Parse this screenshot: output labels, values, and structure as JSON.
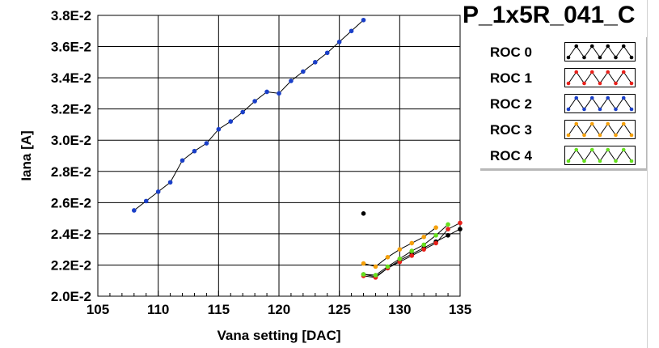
{
  "chart_data": {
    "type": "line",
    "title": "P_1x5R_041_C",
    "xlabel": "Vana setting [DAC]",
    "ylabel": "Iana [A]",
    "xlim": [
      105,
      135
    ],
    "ylim": [
      0.02,
      0.038
    ],
    "x_ticks": [
      105,
      110,
      115,
      120,
      125,
      130,
      135
    ],
    "x_tick_labels": [
      "105",
      "110",
      "115",
      "120",
      "125",
      "130",
      "135"
    ],
    "y_ticks": [
      0.02,
      0.022,
      0.024,
      0.026,
      0.028,
      0.03,
      0.032,
      0.034,
      0.036,
      0.038
    ],
    "y_tick_labels": [
      "2.0E-2",
      "2.2E-2",
      "2.4E-2",
      "2.6E-2",
      "2.8E-2",
      "3.0E-2",
      "3.2E-2",
      "3.4E-2",
      "3.6E-2",
      "3.8E-2"
    ],
    "grid": true,
    "legend_position": "top-right",
    "series": [
      {
        "name": "ROC 0",
        "color": "#000000",
        "x": [
          127,
          128,
          129,
          130,
          131,
          132,
          133,
          134,
          135,
          127
        ],
        "y": [
          0.0214,
          0.02125,
          0.0218,
          0.0223,
          0.0227,
          0.0231,
          0.0235,
          0.0239,
          0.0243,
          0.0253
        ],
        "connect": [
          true,
          true,
          true,
          true,
          true,
          true,
          true,
          true,
          true,
          false
        ]
      },
      {
        "name": "ROC 1",
        "color": "#e8201a",
        "x": [
          127,
          128,
          129,
          130,
          131,
          132,
          133,
          134,
          135
        ],
        "y": [
          0.0213,
          0.0212,
          0.0218,
          0.0222,
          0.0226,
          0.023,
          0.0234,
          0.0243,
          0.0247
        ]
      },
      {
        "name": "ROC 2",
        "color": "#1a3fc8",
        "x": [
          108,
          109,
          110,
          111,
          112,
          113,
          114,
          115,
          116,
          117,
          118,
          119,
          120,
          121,
          122,
          123,
          124,
          125,
          126,
          127
        ],
        "y": [
          0.0255,
          0.0261,
          0.0267,
          0.0273,
          0.0287,
          0.0293,
          0.0298,
          0.0307,
          0.0312,
          0.0318,
          0.0325,
          0.0331,
          0.033,
          0.0338,
          0.0344,
          0.035,
          0.0356,
          0.0363,
          0.037,
          0.0377
        ]
      },
      {
        "name": "ROC 3",
        "color": "#f5a00a",
        "x": [
          127,
          128,
          129,
          130,
          131,
          132,
          133
        ],
        "y": [
          0.0221,
          0.0219,
          0.0225,
          0.023,
          0.0234,
          0.0238,
          0.0244
        ]
      },
      {
        "name": "ROC 4",
        "color": "#66e01e",
        "x": [
          127,
          128,
          129,
          130,
          131,
          132,
          133,
          134
        ],
        "y": [
          0.0214,
          0.02135,
          0.0219,
          0.0224,
          0.0229,
          0.0233,
          0.0239,
          0.0246
        ]
      }
    ]
  }
}
